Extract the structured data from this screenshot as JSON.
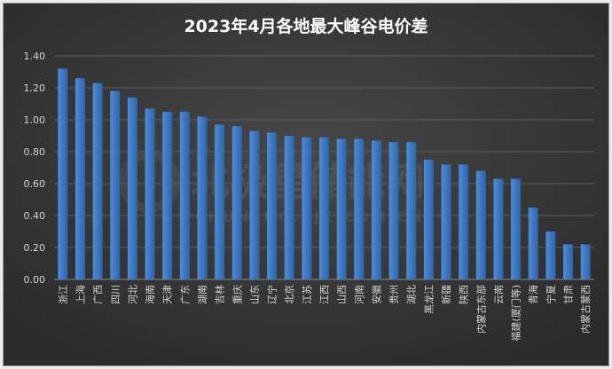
{
  "watermark": {
    "name": "北极星储能网",
    "site": "CHUNENG.BJX.COM.CN"
  },
  "colors": {
    "frame_border": "#9a9a9a",
    "bg_center": "#474747",
    "bg_edge": "#2a2a2a",
    "bar_light": "#4c8dd8",
    "bar_dark": "#2c64ab",
    "grid": "#5e5e5e",
    "axis": "#8a8a8a"
  },
  "chart_data": {
    "type": "bar",
    "title": "2023年4月各地最大峰谷电价差",
    "categories": [
      "浙江",
      "上海",
      "广西",
      "四川",
      "河北",
      "海南",
      "天津",
      "广东",
      "湖南",
      "吉林",
      "重庆",
      "山东",
      "辽宁",
      "北京",
      "江苏",
      "江西",
      "山西",
      "河南",
      "安徽",
      "贵州",
      "湖北",
      "黑龙江",
      "新疆",
      "陕西",
      "内蒙古东部",
      "云南",
      "福建(厦门等)",
      "青海",
      "宁夏",
      "甘肃",
      "内蒙古蒙西"
    ],
    "values": [
      1.32,
      1.26,
      1.23,
      1.18,
      1.14,
      1.07,
      1.05,
      1.05,
      1.02,
      0.97,
      0.96,
      0.93,
      0.92,
      0.9,
      0.89,
      0.89,
      0.88,
      0.88,
      0.87,
      0.86,
      0.86,
      0.75,
      0.72,
      0.72,
      0.68,
      0.63,
      0.63,
      0.45,
      0.3,
      0.22,
      0.22
    ],
    "ylim": [
      0,
      1.4
    ],
    "yticks": [
      "0.00",
      "0.20",
      "0.40",
      "0.60",
      "0.80",
      "1.00",
      "1.20",
      "1.40"
    ],
    "grid": true
  }
}
